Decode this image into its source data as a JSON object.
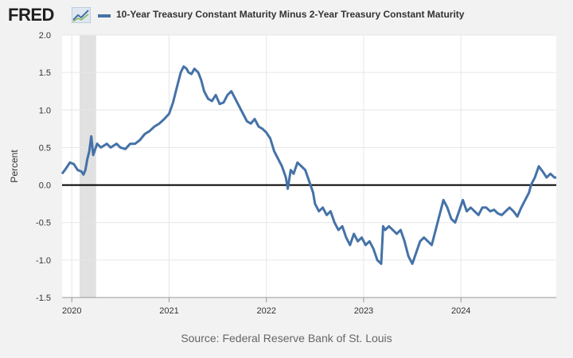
{
  "header": {
    "logo_text": "FRED",
    "legend_label": "10-Year Treasury Constant Maturity Minus 2-Year Treasury Constant Maturity"
  },
  "footer": {
    "source": "Source: Federal Reserve Bank of St. Louis"
  },
  "colors": {
    "series": "#4572a7",
    "recession": "#e1e1e1",
    "zero_line": "#000000",
    "plot_bg": "#ffffff",
    "page_bg": "#f2f2f2"
  },
  "chart_data": {
    "type": "line",
    "ylabel": "Percent",
    "ylim": [
      -1.5,
      2.0
    ],
    "xlim": [
      2019.9,
      2024.98
    ],
    "yticks": [
      {
        "value": 2.0,
        "label": "2.0"
      },
      {
        "value": 1.5,
        "label": "1.5"
      },
      {
        "value": 1.0,
        "label": "1.0"
      },
      {
        "value": 0.5,
        "label": "0.5"
      },
      {
        "value": 0.0,
        "label": "0.0"
      },
      {
        "value": -0.5,
        "label": "-0.5"
      },
      {
        "value": -1.0,
        "label": "-1.0"
      },
      {
        "value": -1.5,
        "label": "-1.5"
      }
    ],
    "xticks": [
      {
        "value": 2020,
        "label": "2020"
      },
      {
        "value": 2021,
        "label": "2021"
      },
      {
        "value": 2022,
        "label": "2022"
      },
      {
        "value": 2023,
        "label": "2023"
      },
      {
        "value": 2024,
        "label": "2024"
      }
    ],
    "recession": {
      "start": 2020.08,
      "end": 2020.25
    },
    "grid": true,
    "series": [
      {
        "name": "10-Year Treasury Constant Maturity Minus 2-Year Treasury Constant Maturity",
        "x": [
          2019.9,
          2019.94,
          2019.98,
          2020.02,
          2020.06,
          2020.1,
          2020.12,
          2020.14,
          2020.16,
          2020.18,
          2020.2,
          2020.22,
          2020.26,
          2020.3,
          2020.36,
          2020.4,
          2020.46,
          2020.5,
          2020.55,
          2020.6,
          2020.65,
          2020.7,
          2020.75,
          2020.8,
          2020.85,
          2020.9,
          2020.95,
          2021.0,
          2021.04,
          2021.08,
          2021.12,
          2021.15,
          2021.18,
          2021.2,
          2021.23,
          2021.26,
          2021.3,
          2021.33,
          2021.36,
          2021.4,
          2021.44,
          2021.48,
          2021.52,
          2021.56,
          2021.6,
          2021.64,
          2021.68,
          2021.72,
          2021.76,
          2021.8,
          2021.84,
          2021.88,
          2021.92,
          2021.96,
          2022.0,
          2022.04,
          2022.08,
          2022.12,
          2022.16,
          2022.2,
          2022.22,
          2022.25,
          2022.28,
          2022.32,
          2022.36,
          2022.4,
          2022.44,
          2022.48,
          2022.5,
          2022.54,
          2022.58,
          2022.62,
          2022.66,
          2022.7,
          2022.74,
          2022.78,
          2022.82,
          2022.86,
          2022.9,
          2022.94,
          2022.98,
          2023.02,
          2023.06,
          2023.1,
          2023.14,
          2023.18,
          2023.2,
          2023.22,
          2023.26,
          2023.3,
          2023.34,
          2023.38,
          2023.42,
          2023.46,
          2023.5,
          2023.54,
          2023.58,
          2023.62,
          2023.66,
          2023.7,
          2023.74,
          2023.78,
          2023.82,
          2023.86,
          2023.9,
          2023.94,
          2023.98,
          2024.02,
          2024.06,
          2024.1,
          2024.14,
          2024.18,
          2024.22,
          2024.26,
          2024.3,
          2024.34,
          2024.38,
          2024.42,
          2024.46,
          2024.5,
          2024.54,
          2024.58,
          2024.62,
          2024.66,
          2024.7,
          2024.72,
          2024.76,
          2024.8,
          2024.84,
          2024.88,
          2024.92,
          2024.96,
          2024.98
        ],
        "values": [
          0.15,
          0.22,
          0.3,
          0.28,
          0.2,
          0.18,
          0.14,
          0.2,
          0.35,
          0.45,
          0.65,
          0.4,
          0.55,
          0.5,
          0.55,
          0.5,
          0.55,
          0.5,
          0.48,
          0.55,
          0.55,
          0.6,
          0.68,
          0.72,
          0.78,
          0.82,
          0.88,
          0.95,
          1.1,
          1.3,
          1.5,
          1.58,
          1.55,
          1.5,
          1.48,
          1.55,
          1.5,
          1.4,
          1.25,
          1.15,
          1.12,
          1.2,
          1.08,
          1.1,
          1.2,
          1.25,
          1.15,
          1.05,
          0.95,
          0.85,
          0.82,
          0.88,
          0.78,
          0.75,
          0.7,
          0.62,
          0.45,
          0.35,
          0.25,
          0.1,
          -0.05,
          0.2,
          0.15,
          0.3,
          0.25,
          0.2,
          0.05,
          -0.1,
          -0.25,
          -0.35,
          -0.3,
          -0.4,
          -0.35,
          -0.5,
          -0.6,
          -0.55,
          -0.7,
          -0.8,
          -0.65,
          -0.75,
          -0.7,
          -0.8,
          -0.75,
          -0.85,
          -1.0,
          -1.05,
          -0.55,
          -0.6,
          -0.55,
          -0.6,
          -0.65,
          -0.6,
          -0.75,
          -0.95,
          -1.05,
          -0.9,
          -0.75,
          -0.7,
          -0.75,
          -0.8,
          -0.6,
          -0.4,
          -0.2,
          -0.3,
          -0.45,
          -0.5,
          -0.35,
          -0.2,
          -0.35,
          -0.3,
          -0.35,
          -0.4,
          -0.3,
          -0.3,
          -0.35,
          -0.33,
          -0.38,
          -0.4,
          -0.35,
          -0.3,
          -0.35,
          -0.42,
          -0.3,
          -0.2,
          -0.1,
          0.0,
          0.1,
          0.25,
          0.18,
          0.1,
          0.15,
          0.1,
          0.1
        ]
      }
    ]
  }
}
